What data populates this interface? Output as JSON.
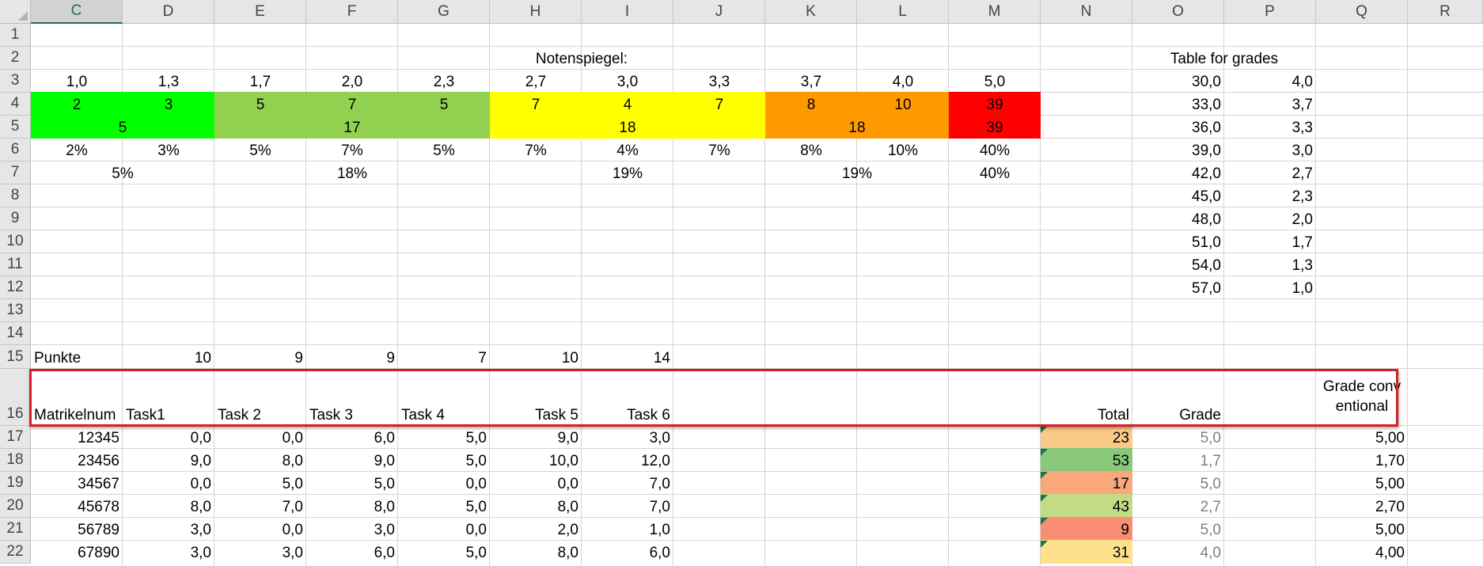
{
  "columns": [
    "C",
    "D",
    "E",
    "F",
    "G",
    "H",
    "I",
    "J",
    "K",
    "L",
    "M",
    "N",
    "O",
    "P",
    "Q",
    "R"
  ],
  "selected_column": "C",
  "rows": [
    "1",
    "2",
    "3",
    "4",
    "5",
    "6",
    "7",
    "8",
    "9",
    "10",
    "11",
    "12",
    "13",
    "14",
    "15",
    "16",
    "17",
    "18",
    "19",
    "20",
    "21",
    "22"
  ],
  "colors": {
    "green": "#00ff00",
    "light_green": "#92d050",
    "yellow": "#ffff00",
    "orange": "#ff9900",
    "red": "#ff0000",
    "total_17": "#fbc987",
    "total_18": "#89c77b",
    "total_19": "#f9a87b",
    "total_20": "#c4db86",
    "total_21": "#f88d74",
    "total_22": "#fee28b",
    "highlight_border": "#d51f26"
  },
  "cells": {
    "notenspiegel_title": "Notenspiegel:",
    "grade_scale": [
      "1,0",
      "1,3",
      "1,7",
      "2,0",
      "2,3",
      "2,7",
      "3,0",
      "3,3",
      "3,7",
      "4,0",
      "5,0"
    ],
    "counts": [
      "2",
      "3",
      "5",
      "7",
      "5",
      "7",
      "4",
      "7",
      "8",
      "10",
      "39"
    ],
    "group_counts": [
      "5",
      "17",
      "18",
      "18",
      "39"
    ],
    "percents": [
      "2%",
      "3%",
      "5%",
      "7%",
      "5%",
      "7%",
      "4%",
      "7%",
      "8%",
      "10%",
      "40%"
    ],
    "group_percents": [
      "5%",
      "18%",
      "19%",
      "19%",
      "40%"
    ],
    "table_title": "Table for grades",
    "grade_table": [
      [
        "30,0",
        "4,0"
      ],
      [
        "33,0",
        "3,7"
      ],
      [
        "36,0",
        "3,3"
      ],
      [
        "39,0",
        "3,0"
      ],
      [
        "42,0",
        "2,7"
      ],
      [
        "45,0",
        "2,3"
      ],
      [
        "48,0",
        "2,0"
      ],
      [
        "51,0",
        "1,7"
      ],
      [
        "54,0",
        "1,3"
      ],
      [
        "57,0",
        "1,0"
      ]
    ],
    "punkte_label": "Punkte",
    "punkte": [
      "10",
      "9",
      "9",
      "7",
      "10",
      "14"
    ],
    "headers": {
      "matrikel": "Matrikelnum",
      "task1": "Task1",
      "task2": "Task 2",
      "task3": "Task 3",
      "task4": "Task 4",
      "task5": "Task 5",
      "task6": "Task 6",
      "total": "Total",
      "grade": "Grade",
      "grade_conventional": "Grade conventional"
    },
    "students": [
      {
        "id": "12345",
        "tasks": [
          "0,0",
          "0,0",
          "6,0",
          "5,0",
          "9,0",
          "3,0"
        ],
        "total": "23",
        "grade": "5,0",
        "conv": "5,00"
      },
      {
        "id": "23456",
        "tasks": [
          "9,0",
          "8,0",
          "9,0",
          "5,0",
          "10,0",
          "12,0"
        ],
        "total": "53",
        "grade": "1,7",
        "conv": "1,70"
      },
      {
        "id": "34567",
        "tasks": [
          "0,0",
          "5,0",
          "5,0",
          "0,0",
          "0,0",
          "7,0"
        ],
        "total": "17",
        "grade": "5,0",
        "conv": "5,00"
      },
      {
        "id": "45678",
        "tasks": [
          "8,0",
          "7,0",
          "8,0",
          "5,0",
          "8,0",
          "7,0"
        ],
        "total": "43",
        "grade": "2,7",
        "conv": "2,70"
      },
      {
        "id": "56789",
        "tasks": [
          "3,0",
          "0,0",
          "3,0",
          "0,0",
          "2,0",
          "1,0"
        ],
        "total": "9",
        "grade": "5,0",
        "conv": "5,00"
      },
      {
        "id": "67890",
        "tasks": [
          "3,0",
          "3,0",
          "6,0",
          "5,0",
          "8,0",
          "6,0"
        ],
        "total": "31",
        "grade": "4,0",
        "conv": "4,00"
      }
    ]
  }
}
